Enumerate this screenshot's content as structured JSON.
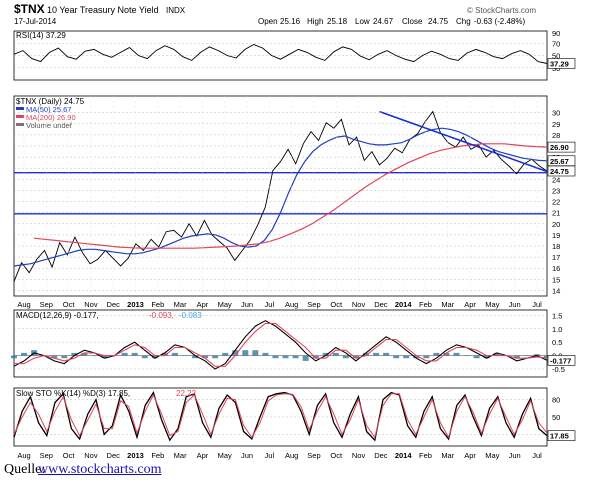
{
  "header": {
    "symbol": "$TNX",
    "name": "10 Year Treasury Note Yield",
    "exchange": "INDX",
    "date": "17-Jul-2014",
    "open_label": "Open",
    "open": "25.16",
    "high_label": "High",
    "high": "25.18",
    "low_label": "Low",
    "low": "24.67",
    "close_label": "Close",
    "close": "24.75",
    "chg_label": "Chg",
    "chg": "-0.63 (-2.48%)",
    "brand": "© StockCharts.com"
  },
  "source": {
    "prefix": "Quelle:",
    "link": "www.stockcharts.com"
  },
  "chart_data": [
    {
      "type": "line",
      "panel": "rsi",
      "legend": "RSI(14) 37.29",
      "y_ticks": [
        "70",
        "50",
        "30"
      ],
      "ylim": [
        10,
        90
      ],
      "last_value_label": "37.29",
      "series": [
        {
          "name": "RSI(14)",
          "color": "#000000",
          "values": [
            52,
            58,
            45,
            40,
            55,
            62,
            48,
            44,
            57,
            60,
            52,
            47,
            55,
            63,
            50,
            45,
            58,
            66,
            60,
            48,
            42,
            55,
            64,
            58,
            50,
            46,
            60,
            68,
            62,
            50,
            44,
            52,
            60,
            55,
            47,
            42,
            56,
            64,
            60,
            49,
            43,
            52,
            58,
            50,
            44,
            40,
            50,
            57,
            52,
            45,
            42,
            54,
            60,
            55,
            48,
            45,
            53,
            58,
            52,
            40,
            37
          ]
        }
      ]
    },
    {
      "type": "line",
      "panel": "price",
      "legend": [
        "$TNX (Daily) 24.75",
        "MA(50) 25.67",
        "MA(200) 26.90",
        "Volume undef"
      ],
      "x_tick_labels": [
        "Aug",
        "Sep",
        "Oct",
        "Nov",
        "Dec",
        "2013",
        "Feb",
        "Mar",
        "Apr",
        "May",
        "Jun",
        "Jul",
        "Aug",
        "Sep",
        "Oct",
        "Nov",
        "Dec",
        "2014",
        "Feb",
        "Mar",
        "Apr",
        "May",
        "Jun",
        "Jul"
      ],
      "y_ticks": [
        14,
        15,
        16,
        17,
        18,
        19,
        20,
        21,
        22,
        23,
        24,
        25,
        26,
        27,
        28,
        29,
        30
      ],
      "ylim": [
        13.5,
        31.5
      ],
      "horizontal_lines": [
        24.6,
        20.9
      ],
      "trendline": {
        "x": [
          48,
          60
        ],
        "y": [
          30.1,
          24.7
        ]
      },
      "value_labels": [
        "26.90",
        "25.67",
        "24.75"
      ],
      "series": [
        {
          "name": "$TNX (Daily)",
          "color": "#000000",
          "values": [
            14.8,
            16.5,
            15.6,
            16.8,
            17.6,
            16.1,
            18.3,
            17.2,
            18.8,
            17.4,
            16.4,
            16.8,
            17.6,
            16.9,
            16.2,
            16.9,
            18.2,
            17.6,
            18.6,
            17.9,
            19.3,
            19.4,
            18.8,
            20.0,
            18.9,
            20.3,
            19.0,
            18.4,
            17.8,
            16.7,
            17.6,
            18.5,
            19.9,
            21.5,
            24.8,
            25.6,
            26.7,
            25.4,
            27.2,
            28.3,
            27.5,
            29.1,
            28.6,
            29.4,
            27.1,
            27.8,
            25.7,
            26.5,
            25.3,
            25.9,
            26.8,
            26.4,
            27.6,
            28.1,
            29.2,
            30.1,
            28.2,
            27.3,
            26.9,
            27.8,
            26.7,
            27.1,
            26.0,
            26.6,
            25.8,
            25.2,
            24.5,
            25.4,
            25.8,
            25.2,
            24.75
          ]
        },
        {
          "name": "MA(50)",
          "color": "#1f3fbf",
          "values": [
            16.2,
            16.3,
            16.4,
            16.6,
            16.8,
            17.0,
            17.2,
            17.4,
            17.6,
            17.7,
            17.7,
            17.6,
            17.5,
            17.4,
            17.3,
            17.3,
            17.4,
            17.6,
            17.8,
            18.1,
            18.4,
            18.7,
            18.9,
            19.0,
            19.1,
            19.0,
            18.7,
            18.3,
            18.0,
            17.9,
            18.0,
            18.5,
            19.5,
            21.0,
            22.8,
            24.4,
            25.6,
            26.5,
            27.1,
            27.5,
            27.8,
            27.9,
            27.6,
            27.4,
            27.2,
            27.1,
            27.1,
            27.2,
            27.3,
            27.6,
            28.0,
            28.3,
            28.5,
            28.6,
            28.5,
            28.3,
            28.0,
            27.6,
            27.2,
            26.8,
            26.5,
            26.3,
            26.1,
            25.9,
            25.8,
            25.7,
            25.67
          ]
        },
        {
          "name": "MA(200)",
          "color": "#e0455a",
          "values": [
            18.7,
            18.6,
            18.5,
            18.4,
            18.3,
            18.2,
            18.1,
            18.0,
            17.9,
            17.85,
            17.8,
            17.8,
            17.8,
            17.8,
            17.8,
            17.8,
            17.85,
            17.9,
            17.95,
            18.0,
            18.1,
            18.2,
            18.4,
            18.7,
            19.1,
            19.5,
            20.0,
            20.6,
            21.2,
            21.9,
            22.6,
            23.3,
            23.9,
            24.5,
            25.0,
            25.5,
            25.9,
            26.3,
            26.6,
            26.8,
            27.0,
            27.1,
            27.2,
            27.2,
            27.2,
            27.1,
            27.0,
            26.95,
            26.9
          ]
        }
      ]
    },
    {
      "type": "line",
      "panel": "macd",
      "legend": [
        "MACD(12,26,9) -0.177,",
        "-0.093,",
        "-0.083"
      ],
      "legend_colors": [
        "#000000",
        "#e0455a",
        "#4aa3df"
      ],
      "y_ticks": [
        "1.5",
        "1.0",
        "0.5",
        "0.0",
        "-0.5"
      ],
      "ylim": [
        -0.8,
        1.7
      ],
      "last_value_label": "-0.177",
      "series": [
        {
          "name": "MACD",
          "color": "#000000",
          "values": [
            -0.4,
            -0.2,
            0.1,
            0.0,
            -0.2,
            -0.3,
            0.0,
            0.2,
            0.1,
            -0.1,
            0.0,
            0.3,
            0.5,
            0.2,
            -0.1,
            0.1,
            0.4,
            0.3,
            0.0,
            -0.2,
            -0.5,
            -0.3,
            0.2,
            0.7,
            1.1,
            1.3,
            1.1,
            0.8,
            0.5,
            0.1,
            -0.2,
            0.0,
            0.3,
            0.1,
            -0.2,
            0.1,
            0.4,
            0.7,
            0.5,
            0.2,
            -0.1,
            -0.3,
            -0.1,
            0.2,
            0.4,
            0.3,
            0.1,
            -0.1,
            0.1,
            0.0,
            -0.2,
            -0.1,
            0.0,
            -0.177
          ]
        },
        {
          "name": "Signal",
          "color": "#e0455a",
          "values": [
            -0.3,
            -0.3,
            -0.1,
            0.0,
            -0.1,
            -0.2,
            -0.1,
            0.1,
            0.1,
            0.0,
            0.0,
            0.2,
            0.4,
            0.3,
            0.0,
            0.0,
            0.3,
            0.3,
            0.1,
            -0.1,
            -0.4,
            -0.4,
            0.0,
            0.5,
            0.9,
            1.2,
            1.2,
            0.9,
            0.6,
            0.3,
            -0.1,
            -0.1,
            0.2,
            0.2,
            -0.1,
            0.0,
            0.3,
            0.6,
            0.6,
            0.3,
            0.0,
            -0.2,
            -0.2,
            0.1,
            0.3,
            0.3,
            0.2,
            0.0,
            0.0,
            0.0,
            -0.1,
            -0.1,
            -0.05,
            -0.093
          ]
        },
        {
          "name": "Histogram",
          "color": "#2a6f97",
          "type": "bar",
          "values": [
            -0.1,
            0.1,
            0.2,
            0.0,
            -0.1,
            -0.1,
            0.1,
            0.1,
            0.0,
            -0.1,
            0.0,
            0.1,
            0.1,
            -0.1,
            -0.1,
            0.1,
            0.1,
            0.0,
            -0.1,
            -0.1,
            -0.1,
            0.1,
            0.2,
            0.2,
            0.2,
            0.1,
            -0.1,
            -0.1,
            -0.1,
            -0.2,
            -0.1,
            0.1,
            0.1,
            -0.1,
            -0.1,
            0.1,
            0.1,
            0.1,
            -0.1,
            -0.1,
            -0.1,
            -0.1,
            0.1,
            0.1,
            0.1,
            0.0,
            -0.1,
            -0.1,
            0.1,
            0.0,
            -0.1,
            0.0,
            0.05,
            -0.083
          ]
        }
      ]
    },
    {
      "type": "line",
      "panel": "stochastic",
      "legend": [
        "Slow STO %K(14) %D(3) 17.85,",
        "22.22"
      ],
      "legend_colors": [
        "#000000",
        "#e0455a"
      ],
      "y_ticks": [
        "80",
        "50",
        "20"
      ],
      "ylim": [
        0,
        100
      ],
      "last_value_label": "17.85",
      "series": [
        {
          "name": "%K(14)",
          "color": "#000000",
          "values": [
            15,
            60,
            85,
            40,
            18,
            75,
            90,
            30,
            12,
            55,
            80,
            20,
            35,
            88,
            60,
            15,
            70,
            92,
            45,
            10,
            30,
            85,
            90,
            40,
            15,
            65,
            88,
            75,
            25,
            12,
            50,
            85,
            90,
            92,
            88,
            60,
            20,
            70,
            90,
            40,
            15,
            55,
            85,
            25,
            10,
            80,
            92,
            88,
            35,
            15,
            60,
            85,
            30,
            12,
            70,
            88,
            50,
            18,
            65,
            85,
            40,
            15,
            55,
            82,
            30,
            17.85
          ]
        },
        {
          "name": "%D(3)",
          "color": "#e0455a",
          "values": [
            20,
            50,
            75,
            55,
            25,
            60,
            85,
            45,
            18,
            45,
            72,
            30,
            30,
            78,
            68,
            22,
            60,
            88,
            55,
            18,
            25,
            75,
            88,
            55,
            20,
            55,
            82,
            80,
            35,
            15,
            40,
            78,
            88,
            90,
            89,
            68,
            28,
            60,
            85,
            55,
            20,
            45,
            80,
            35,
            15,
            70,
            90,
            90,
            45,
            20,
            50,
            80,
            40,
            15,
            60,
            85,
            58,
            22,
            55,
            82,
            50,
            20,
            45,
            78,
            40,
            22.22
          ]
        }
      ]
    }
  ]
}
